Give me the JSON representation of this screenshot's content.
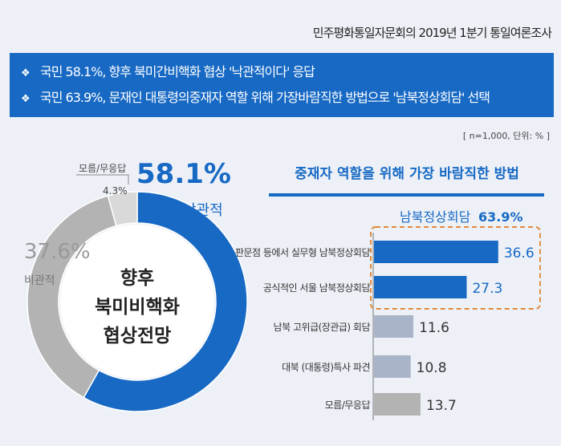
{
  "header": {
    "source": "민주평화통일자문회의  2019년 1분기 통일여론조사"
  },
  "banner": {
    "bullet": "❖",
    "lines": [
      "국민 58.1%, 향후 북미간비핵화 협상 '낙관적이다' 응답",
      "국민 63.9%, 문재인 대통령의중재자 역할 위해 가장바람직한 방법으로 '남북정상회담' 선택"
    ]
  },
  "note": "[ n=1,000, 단위: % ]",
  "colors": {
    "blue": "#1769c4",
    "gray": "#b3b3b3",
    "light_gray": "#d9d9d9",
    "bar_gray": "#aab4c8",
    "orange": "#e08a3a"
  },
  "chart_data": [
    {
      "type": "pie",
      "donut": true,
      "title_lines": [
        "향후",
        "북미비핵화",
        "협상전망"
      ],
      "slices": [
        {
          "name": "낙관적",
          "value": 58.1,
          "label": "58.1%"
        },
        {
          "name": "비관적",
          "value": 37.6,
          "label": "37.6%"
        },
        {
          "name": "모름/무응답",
          "value": 4.3,
          "label": "4.3%"
        }
      ]
    },
    {
      "type": "bar",
      "orientation": "horizontal",
      "title": "중재자 역할을 위해 가장 바람직한 방법",
      "group_label": "남북정상회담",
      "group_value": "63.9%",
      "categories": [
        "판문점 등에서 실무형 남북정상회담",
        "공식적인 서울 남북정상회담",
        "남북 고위급(장관급) 회담",
        "대북 (대통령)특사 파견",
        "모름/무응답"
      ],
      "values": [
        36.6,
        27.3,
        11.6,
        10.8,
        13.7
      ],
      "value_labels": [
        "36.6",
        "27.3",
        "11.6",
        "10.8",
        "13.7"
      ]
    }
  ]
}
